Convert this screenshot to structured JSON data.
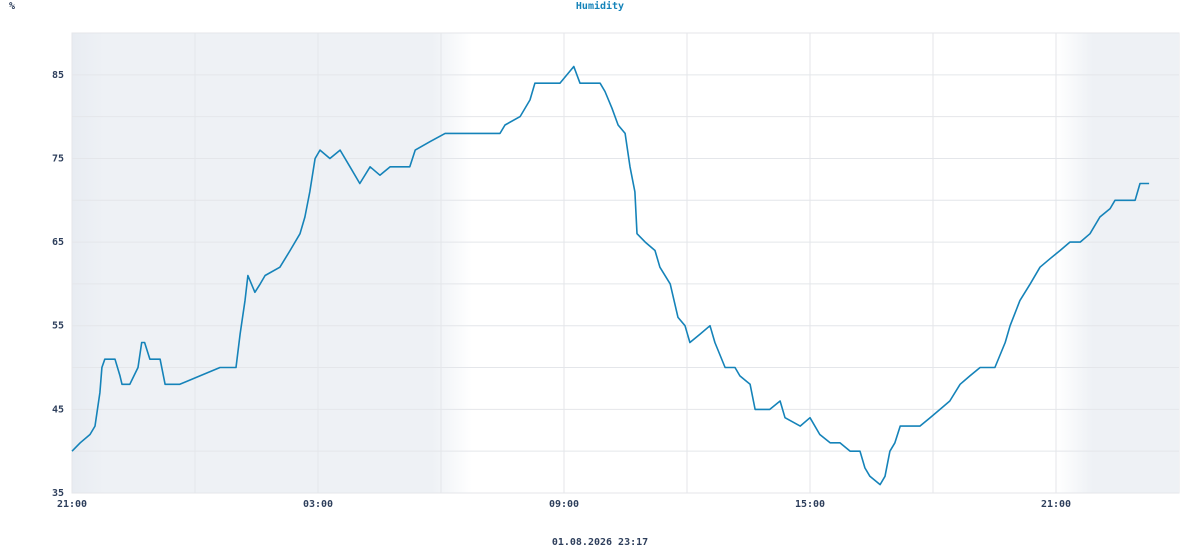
{
  "chart_data": {
    "type": "line",
    "title": "Humidity",
    "y_unit": "%",
    "footer": "01.08.2026 23:17",
    "x": [
      0,
      0.2,
      0.44,
      0.56,
      0.68,
      0.73,
      0.8,
      1.05,
      1.17,
      1.22,
      1.41,
      1.61,
      1.7,
      1.77,
      1.9,
      2.15,
      2.27,
      2.63,
      3.12,
      3.61,
      4.0,
      4.1,
      4.22,
      4.29,
      4.46,
      4.59,
      4.71,
      5.07,
      5.32,
      5.56,
      5.68,
      5.8,
      5.93,
      6.05,
      6.29,
      6.54,
      6.78,
      7.02,
      7.27,
      7.51,
      7.76,
      8.24,
      8.37,
      8.73,
      9.1,
      10.44,
      10.56,
      10.93,
      11.17,
      11.29,
      11.9,
      12.24,
      12.39,
      12.88,
      13.0,
      13.17,
      13.32,
      13.49,
      13.61,
      13.73,
      13.78,
      13.98,
      14.22,
      14.34,
      14.59,
      14.78,
      14.95,
      15.07,
      15.32,
      15.56,
      15.68,
      15.93,
      16.17,
      16.29,
      16.54,
      16.66,
      17.02,
      17.27,
      17.39,
      17.76,
      18.0,
      18.24,
      18.49,
      18.73,
      18.98,
      19.22,
      19.34,
      19.46,
      19.71,
      19.83,
      19.95,
      20.07,
      20.2,
      20.68,
      20.93,
      21.17,
      21.41,
      21.66,
      21.9,
      22.15,
      22.51,
      22.76,
      22.88,
      23.12,
      23.37,
      23.61,
      23.85,
      24.1,
      24.34,
      24.59,
      24.83,
      25.07,
      25.32,
      25.44,
      25.93,
      26.05,
      26.27
    ],
    "series": [
      {
        "color": "#1583b9",
        "values": [
          40,
          41,
          42,
          43,
          47,
          50,
          51,
          51,
          49,
          48,
          48,
          50,
          53,
          53,
          51,
          51,
          48,
          48,
          49,
          50,
          50,
          54,
          58,
          61,
          59,
          60,
          61,
          62,
          64,
          66,
          68,
          71,
          75,
          76,
          75,
          76,
          74,
          72,
          74,
          73,
          74,
          74,
          76,
          77,
          78,
          78,
          79,
          80,
          82,
          84,
          84,
          86,
          84,
          84,
          83,
          81,
          79,
          78,
          74,
          71,
          66,
          65,
          64,
          62,
          60,
          56,
          55,
          53,
          54,
          55,
          53,
          50,
          50,
          49,
          48,
          45,
          45,
          46,
          44,
          43,
          44,
          42,
          41,
          41,
          40,
          40,
          38,
          37,
          36,
          37,
          40,
          41,
          43,
          43,
          44,
          45,
          46,
          48,
          49,
          50,
          50,
          53,
          55,
          58,
          60,
          62,
          63,
          64,
          65,
          65,
          66,
          68,
          69,
          70,
          70,
          72,
          72
        ]
      }
    ],
    "xlim": [
      0,
      27
    ],
    "xticks": [
      {
        "value": 0,
        "label": "21:00"
      },
      {
        "value": 6,
        "label": "03:00"
      },
      {
        "value": 12,
        "label": "09:00"
      },
      {
        "value": 18,
        "label": "15:00"
      },
      {
        "value": 24,
        "label": "21:00"
      }
    ],
    "minor_xticks": [
      3,
      9,
      15,
      21
    ],
    "ylim": [
      35,
      90
    ],
    "yticks": [
      35,
      45,
      55,
      65,
      75,
      85
    ],
    "minor_yticks": [
      40,
      50,
      60,
      70,
      80,
      90
    ],
    "grid": true
  }
}
